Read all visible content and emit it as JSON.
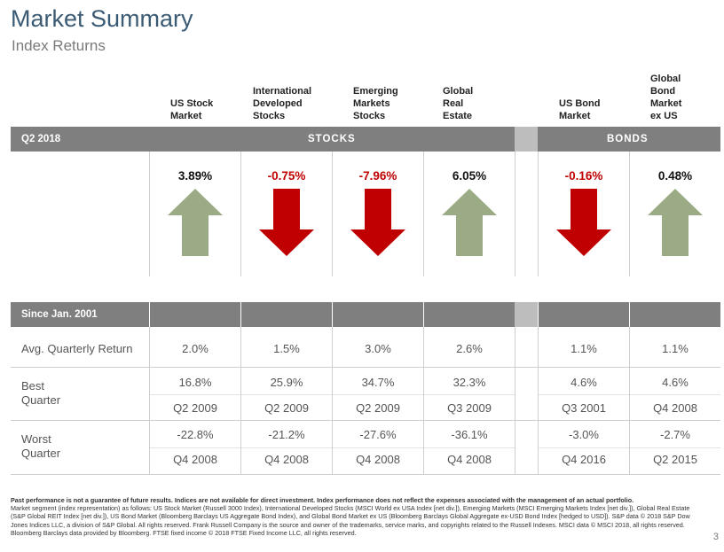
{
  "header": {
    "title": "Market Summary",
    "subtitle": "Index Returns"
  },
  "columns": [
    "US Stock\nMarket",
    "International\nDeveloped\nStocks",
    "Emerging\nMarkets\nStocks",
    "Global\nReal\nEstate",
    "US Bond\nMarket",
    "Global\nBond\nMarket\nex US"
  ],
  "quarter_bar": {
    "period": "Q2 2018",
    "stocks": "STOCKS",
    "bonds": "BONDS"
  },
  "quarter_returns": [
    {
      "value": "3.89%",
      "direction": "up"
    },
    {
      "value": "-0.75%",
      "direction": "down"
    },
    {
      "value": "-7.96%",
      "direction": "down"
    },
    {
      "value": "6.05%",
      "direction": "up"
    },
    {
      "value": "-0.16%",
      "direction": "down"
    },
    {
      "value": "0.48%",
      "direction": "up"
    }
  ],
  "colors": {
    "up_arrow": "#9aab85",
    "down_arrow": "#c00000",
    "bar": "#7f7f7f",
    "title": "#3b5a73",
    "negative_text": "#c00000"
  },
  "since_bar": {
    "label": "Since Jan. 2001"
  },
  "rows": {
    "avg": {
      "label": "Avg. Quarterly Return",
      "values": [
        "2.0%",
        "1.5%",
        "3.0%",
        "2.6%",
        "1.1%",
        "1.1%"
      ]
    },
    "best": {
      "label": "Best\nQuarter",
      "values": [
        "16.8%",
        "25.9%",
        "34.7%",
        "32.3%",
        "4.6%",
        "4.6%"
      ],
      "quarters": [
        "Q2 2009",
        "Q2 2009",
        "Q2 2009",
        "Q3 2009",
        "Q3 2001",
        "Q4 2008"
      ]
    },
    "worst": {
      "label": "Worst\nQuarter",
      "values": [
        "-22.8%",
        "-21.2%",
        "-27.6%",
        "-36.1%",
        "-3.0%",
        "-2.7%"
      ],
      "quarters": [
        "Q4 2008",
        "Q4 2008",
        "Q4 2008",
        "Q4 2008",
        "Q4 2016",
        "Q2 2015"
      ]
    }
  },
  "footnote": {
    "bold": "Past performance is not a guarantee of future results. Indices are not available for direct investment. Index performance does not reflect the expenses associated with the management of an actual portfolio.",
    "text": "Market segment (index representation) as follows: US Stock Market (Russell 3000 Index), International Developed Stocks (MSCI World ex USA Index [net div.]), Emerging Markets (MSCI Emerging Markets Index [net div.]), Global Real Estate (S&P Global REIT Index [net div.]), US Bond Market (Bloomberg Barclays US Aggregate Bond Index), and Global Bond Market ex US (Bloomberg Barclays Global Aggregate ex-USD Bond Index [hedged to USD]). S&P data © 2018 S&P Dow Jones Indices LLC, a division of S&P Global. All rights reserved. Frank Russell Company is the source and owner of the trademarks, service marks, and copyrights related to the Russell Indexes. MSCI data © MSCI 2018, all rights reserved. Bloomberg Barclays data provided by Bloomberg. FTSE fixed income © 2018 FTSE Fixed Income LLC, all rights reserved."
  },
  "page_number": "3"
}
